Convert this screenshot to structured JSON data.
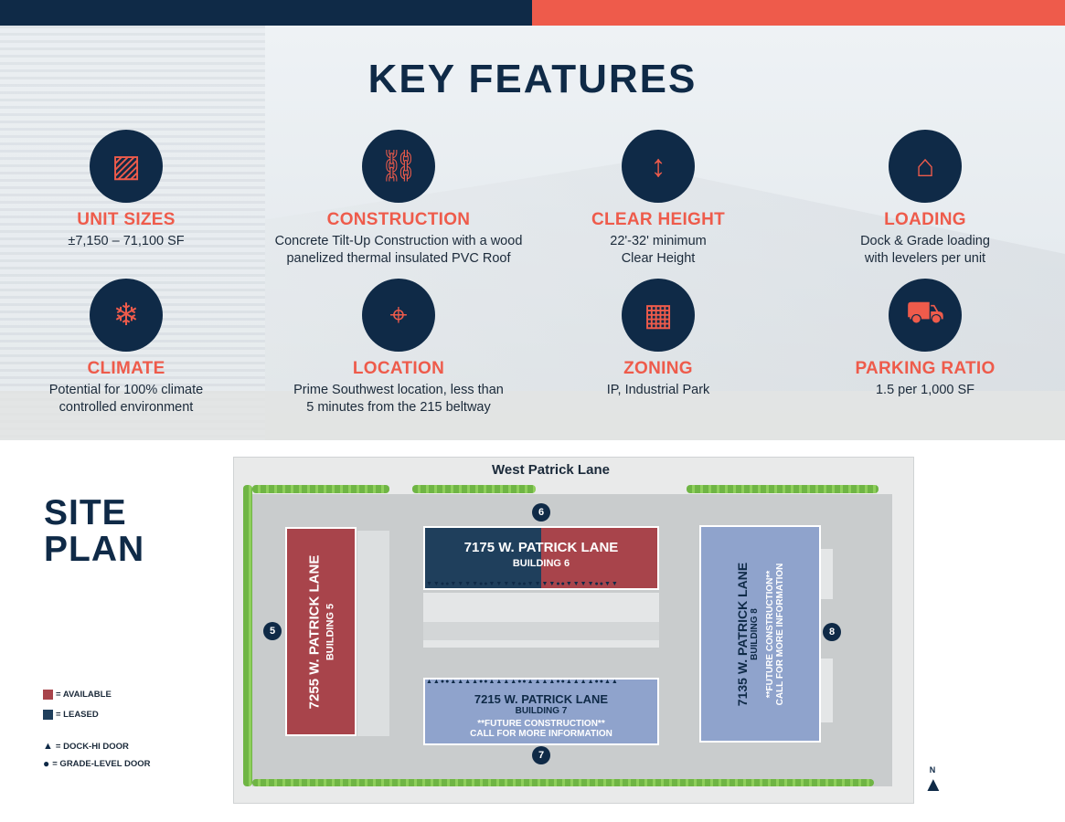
{
  "colors": {
    "navy": "#0f2a47",
    "coral": "#ee5b4b",
    "available": "#a8444b",
    "leased": "#1f3f5c",
    "future": "#8fa3cc"
  },
  "key_features": {
    "title": "KEY FEATURES",
    "items": [
      {
        "icon": "unit-sizes-icon",
        "title": "UNIT SIZES",
        "lines": [
          "±7,150 – 71,100 SF"
        ]
      },
      {
        "icon": "crane-icon",
        "title": "CONSTRUCTION",
        "lines": [
          "Concrete Tilt-Up Construction with a wood",
          "panelized thermal insulated PVC Roof"
        ]
      },
      {
        "icon": "clear-height-icon",
        "title": "CLEAR HEIGHT",
        "lines": [
          "22'-32' minimum",
          "Clear Height"
        ]
      },
      {
        "icon": "garage-door-icon",
        "title": "LOADING",
        "lines": [
          "Dock & Grade loading",
          "with levelers per unit"
        ]
      },
      {
        "icon": "climate-icon",
        "title": "CLIMATE",
        "lines": [
          "Potential for 100% climate",
          "controlled environment"
        ]
      },
      {
        "icon": "map-pin-icon",
        "title": "LOCATION",
        "lines": [
          "Prime Southwest location, less than",
          "5 minutes from the 215 beltway"
        ]
      },
      {
        "icon": "zoning-map-icon",
        "title": "ZONING",
        "lines": [
          "IP, Industrial Park"
        ]
      },
      {
        "icon": "parking-icon",
        "title": "PARKING RATIO",
        "lines": [
          "1.5 per 1,000 SF"
        ]
      }
    ]
  },
  "site_plan": {
    "title_line1": "SITE",
    "title_line2": "PLAN",
    "street": "West Patrick Lane",
    "legend": [
      "= AVAILABLE",
      "= LEASED",
      "= DOCK-HI DOOR",
      "= GRADE-LEVEL DOOR"
    ],
    "buildings": {
      "b5": {
        "address": "7255 W. PATRICK LANE",
        "name": "BUILDING 5",
        "marker": "5",
        "status": "available"
      },
      "b6": {
        "address": "7175 W. PATRICK LANE",
        "name": "BUILDING 6",
        "marker": "6",
        "status": "leased / available"
      },
      "b7": {
        "address": "7215 W. PATRICK LANE",
        "name": "BUILDING 7",
        "note1": "**FUTURE CONSTRUCTION**",
        "note2": "CALL FOR MORE INFORMATION",
        "marker": "7"
      },
      "b8": {
        "address": "7135 W. PATRICK LANE",
        "name": "BUILDING 8",
        "note1": "**FUTURE CONSTRUCTION**",
        "note2": "CALL FOR MORE INFORMATION",
        "marker": "8"
      }
    },
    "north": "N"
  }
}
